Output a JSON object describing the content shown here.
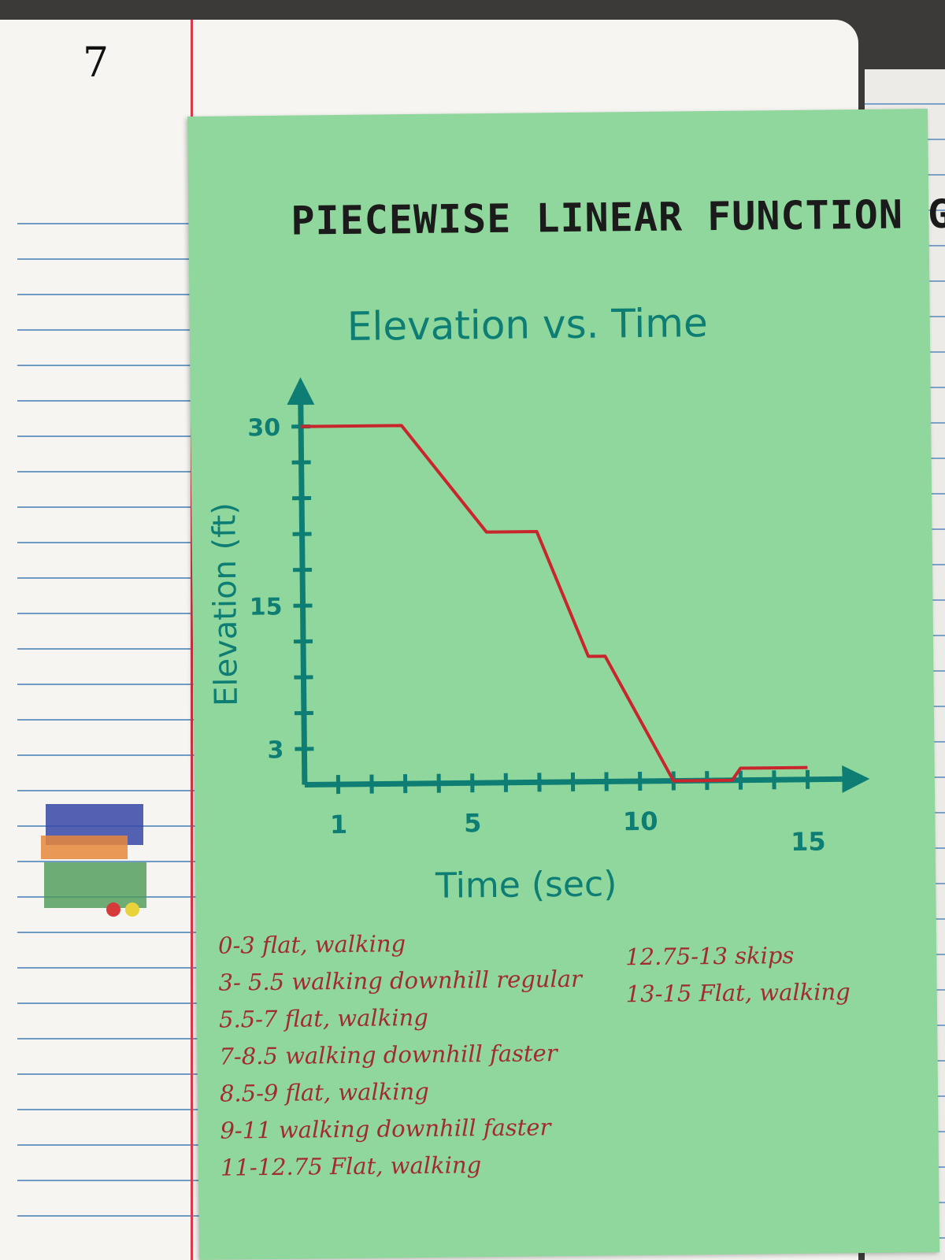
{
  "notebook": {
    "page_number": "7"
  },
  "card": {
    "main_title": "PIECEWISE LINEAR FUNCTION GRAPHS",
    "notes_left": [
      "0-3  flat, walking",
      "3- 5.5 walking downhill regular",
      "5.5-7  flat, walking",
      "7-8.5  walking downhill faster",
      "8.5-9  flat, walking",
      "9-11  walking downhill faster",
      "11-12.75  Flat, walking"
    ],
    "notes_right": [
      "12.75-13  skips",
      "13-15  Flat, walking"
    ]
  },
  "colors": {
    "card": "#8fd79c",
    "axis": "#0e7d73",
    "line": "#c8262c",
    "ink": "#a12b32"
  },
  "chart_data": {
    "type": "line",
    "title": "Elevation vs. Time",
    "xlabel": "Time (sec)",
    "ylabel": "Elevation (ft)",
    "x_tick_labels": [
      {
        "value": 1,
        "label": "1"
      },
      {
        "value": 5,
        "label": "5"
      },
      {
        "value": 10,
        "label": "10"
      },
      {
        "value": 15,
        "label": "15"
      }
    ],
    "y_tick_labels": [
      {
        "value": 3,
        "label": "3"
      },
      {
        "value": 15,
        "label": "15"
      },
      {
        "value": 30,
        "label": "30"
      }
    ],
    "x_minor_ticks": [
      1,
      2,
      3,
      4,
      5,
      6,
      7,
      8,
      9,
      10,
      11,
      12,
      13,
      14,
      15
    ],
    "y_minor_ticks": [
      3,
      6,
      9,
      12,
      15,
      18,
      21,
      24,
      27,
      30
    ],
    "xlim": [
      0,
      15.5
    ],
    "ylim": [
      0,
      31
    ],
    "grid": false,
    "series": [
      {
        "x": [
          0,
          3,
          5.5,
          7,
          8.5,
          9,
          11,
          12.75,
          13,
          15
        ],
        "y": [
          30,
          30,
          21,
          21,
          10.5,
          10.5,
          0,
          0,
          1,
          1
        ]
      }
    ]
  }
}
